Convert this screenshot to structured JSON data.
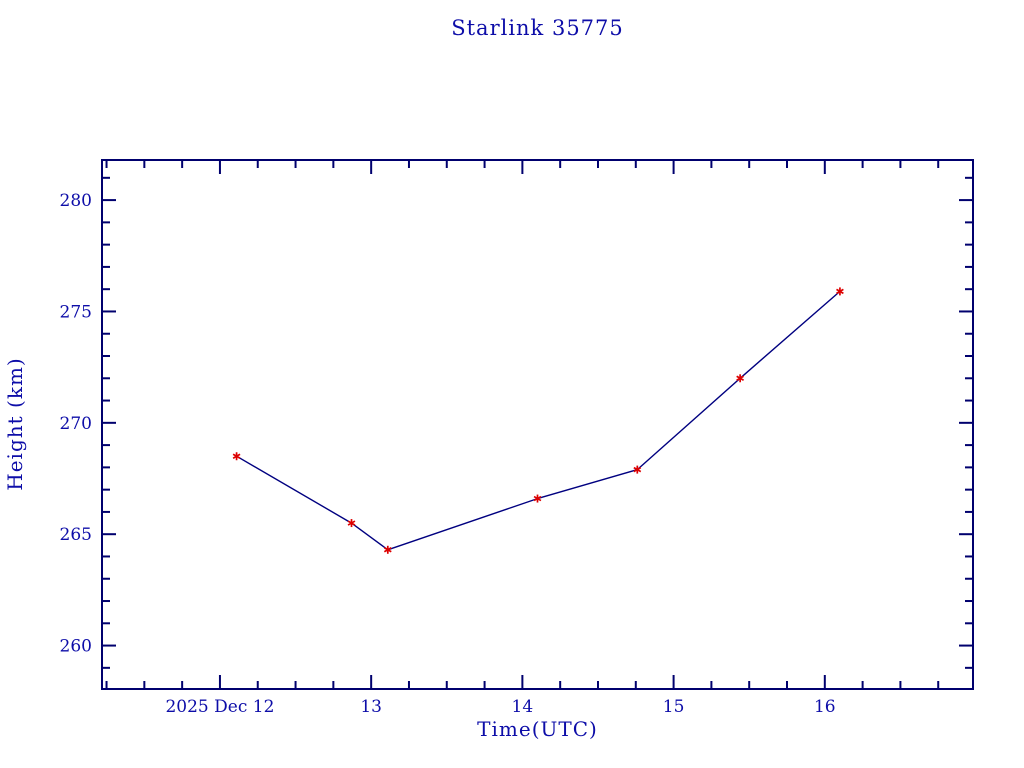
{
  "colors": {
    "background": "#ffffff",
    "axis": "#00006e",
    "text": "#0d0da8",
    "line": "#000080",
    "marker": "#dd0000"
  },
  "chart_data": {
    "type": "line",
    "title": "Starlink 35775",
    "xlabel": "Time(UTC)",
    "ylabel": "Height (km)",
    "x_axis_unit": "day of month, 2025 Dec",
    "x": [
      12.11,
      12.87,
      13.11,
      14.1,
      14.76,
      15.44,
      16.1
    ],
    "y": [
      268.5,
      265.5,
      264.3,
      266.6,
      267.9,
      272.0,
      275.9
    ],
    "marker_style": "asterisk",
    "xlim": [
      11.22,
      16.98
    ],
    "ylim": [
      258.05,
      281.8
    ],
    "x_major_ticks": [
      12,
      13,
      14,
      15,
      16
    ],
    "x_major_tick_labels": [
      "2025 Dec 12",
      "13",
      "14",
      "15",
      "16"
    ],
    "x_minor_tick_step": 0.25,
    "y_major_ticks": [
      260,
      265,
      270,
      275,
      280
    ],
    "y_major_tick_labels": [
      "260",
      "265",
      "270",
      "275",
      "280"
    ],
    "y_minor_tick_step": 1,
    "grid": false,
    "legend": "none"
  }
}
